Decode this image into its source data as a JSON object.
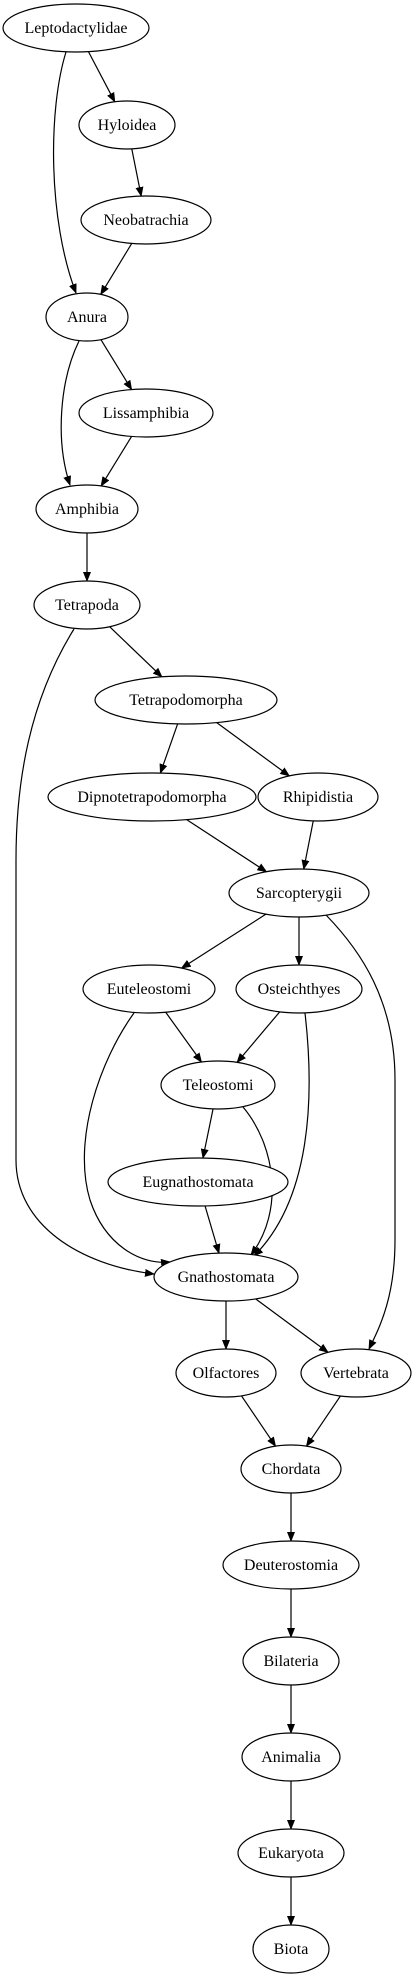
{
  "diagram": {
    "type": "directed-graph",
    "stroke_color": "#000000",
    "background_color": "#ffffff",
    "nodes": [
      {
        "id": "Leptodactylidae",
        "label": "Leptodactylidae"
      },
      {
        "id": "Hyloidea",
        "label": "Hyloidea"
      },
      {
        "id": "Neobatrachia",
        "label": "Neobatrachia"
      },
      {
        "id": "Anura",
        "label": "Anura"
      },
      {
        "id": "Lissamphibia",
        "label": "Lissamphibia"
      },
      {
        "id": "Amphibia",
        "label": "Amphibia"
      },
      {
        "id": "Tetrapoda",
        "label": "Tetrapoda"
      },
      {
        "id": "Tetrapodomorpha",
        "label": "Tetrapodomorpha"
      },
      {
        "id": "Dipnotetrapodomorpha",
        "label": "Dipnotetrapodomorpha"
      },
      {
        "id": "Rhipidistia",
        "label": "Rhipidistia"
      },
      {
        "id": "Sarcopterygii",
        "label": "Sarcopterygii"
      },
      {
        "id": "Euteleostomi",
        "label": "Euteleostomi"
      },
      {
        "id": "Osteichthyes",
        "label": "Osteichthyes"
      },
      {
        "id": "Teleostomi",
        "label": "Teleostomi"
      },
      {
        "id": "Eugnathostomata",
        "label": "Eugnathostomata"
      },
      {
        "id": "Gnathostomata",
        "label": "Gnathostomata"
      },
      {
        "id": "Olfactores",
        "label": "Olfactores"
      },
      {
        "id": "Vertebrata",
        "label": "Vertebrata"
      },
      {
        "id": "Chordata",
        "label": "Chordata"
      },
      {
        "id": "Deuterostomia",
        "label": "Deuterostomia"
      },
      {
        "id": "Bilateria",
        "label": "Bilateria"
      },
      {
        "id": "Animalia",
        "label": "Animalia"
      },
      {
        "id": "Eukaryota",
        "label": "Eukaryota"
      },
      {
        "id": "Biota",
        "label": "Biota"
      }
    ],
    "edges": [
      {
        "from": "Leptodactylidae",
        "to": "Hyloidea"
      },
      {
        "from": "Leptodactylidae",
        "to": "Anura"
      },
      {
        "from": "Hyloidea",
        "to": "Neobatrachia"
      },
      {
        "from": "Neobatrachia",
        "to": "Anura"
      },
      {
        "from": "Anura",
        "to": "Lissamphibia"
      },
      {
        "from": "Anura",
        "to": "Amphibia"
      },
      {
        "from": "Lissamphibia",
        "to": "Amphibia"
      },
      {
        "from": "Amphibia",
        "to": "Tetrapoda"
      },
      {
        "from": "Tetrapoda",
        "to": "Tetrapodomorpha"
      },
      {
        "from": "Tetrapoda",
        "to": "Gnathostomata"
      },
      {
        "from": "Tetrapodomorpha",
        "to": "Dipnotetrapodomorpha"
      },
      {
        "from": "Tetrapodomorpha",
        "to": "Rhipidistia"
      },
      {
        "from": "Dipnotetrapodomorpha",
        "to": "Sarcopterygii"
      },
      {
        "from": "Rhipidistia",
        "to": "Sarcopterygii"
      },
      {
        "from": "Sarcopterygii",
        "to": "Euteleostomi"
      },
      {
        "from": "Sarcopterygii",
        "to": "Osteichthyes"
      },
      {
        "from": "Sarcopterygii",
        "to": "Vertebrata"
      },
      {
        "from": "Euteleostomi",
        "to": "Teleostomi"
      },
      {
        "from": "Euteleostomi",
        "to": "Gnathostomata"
      },
      {
        "from": "Osteichthyes",
        "to": "Teleostomi"
      },
      {
        "from": "Osteichthyes",
        "to": "Gnathostomata"
      },
      {
        "from": "Teleostomi",
        "to": "Eugnathostomata"
      },
      {
        "from": "Teleostomi",
        "to": "Gnathostomata"
      },
      {
        "from": "Eugnathostomata",
        "to": "Gnathostomata"
      },
      {
        "from": "Gnathostomata",
        "to": "Olfactores"
      },
      {
        "from": "Gnathostomata",
        "to": "Vertebrata"
      },
      {
        "from": "Olfactores",
        "to": "Chordata"
      },
      {
        "from": "Vertebrata",
        "to": "Chordata"
      },
      {
        "from": "Chordata",
        "to": "Deuterostomia"
      },
      {
        "from": "Deuterostomia",
        "to": "Bilateria"
      },
      {
        "from": "Bilateria",
        "to": "Animalia"
      },
      {
        "from": "Animalia",
        "to": "Eukaryota"
      },
      {
        "from": "Eukaryota",
        "to": "Biota"
      }
    ]
  }
}
